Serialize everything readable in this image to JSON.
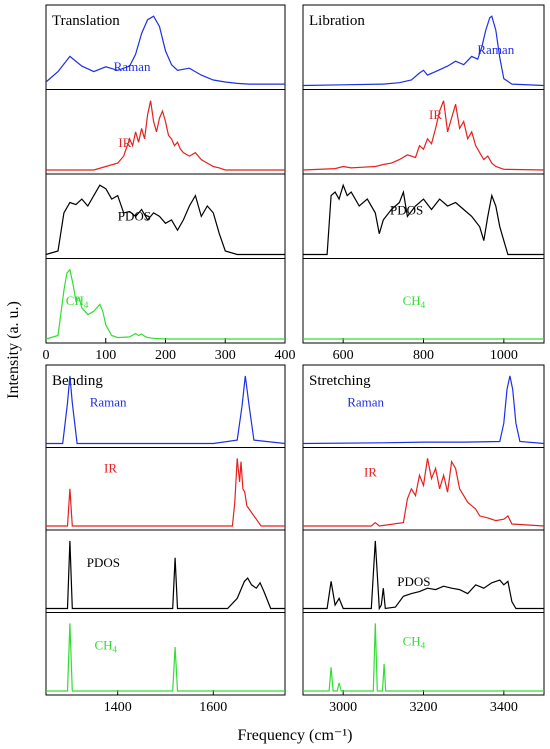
{
  "figure": {
    "ylabel": "Intensity (a. u.)",
    "xlabel": "Frequency (cm⁻¹)"
  },
  "colors": {
    "Raman": "#1f2fe6",
    "IR": "#e62020",
    "PDOS": "#000000",
    "CH4": "#33dd33"
  },
  "chart_data": [
    {
      "type": "line",
      "title": "Translation",
      "xlim": [
        0,
        400
      ],
      "xticks": [
        0,
        100,
        200,
        300,
        400
      ],
      "tick_labels": [
        "0",
        "100",
        "200",
        "300",
        "400"
      ],
      "series": [
        {
          "name": "Raman",
          "x": [
            0,
            20,
            40,
            60,
            80,
            100,
            120,
            140,
            150,
            160,
            170,
            180,
            190,
            200,
            210,
            220,
            240,
            260,
            280,
            300,
            320,
            340,
            360,
            400
          ],
          "y": [
            0.05,
            0.2,
            0.42,
            0.28,
            0.2,
            0.27,
            0.22,
            0.28,
            0.45,
            0.75,
            0.95,
            1.0,
            0.85,
            0.5,
            0.3,
            0.22,
            0.25,
            0.15,
            0.08,
            0.05,
            0.03,
            0.02,
            0.02,
            0.02
          ]
        },
        {
          "name": "IR",
          "x": [
            0,
            80,
            100,
            120,
            130,
            140,
            145,
            150,
            155,
            160,
            165,
            170,
            175,
            180,
            185,
            190,
            195,
            200,
            205,
            210,
            215,
            220,
            225,
            230,
            240,
            250,
            260,
            270,
            280,
            290,
            300,
            400
          ],
          "y": [
            0,
            0,
            0.05,
            0.1,
            0.2,
            0.45,
            0.35,
            0.55,
            0.4,
            0.6,
            0.45,
            0.8,
            1.0,
            0.7,
            0.55,
            0.75,
            0.85,
            0.7,
            0.5,
            0.45,
            0.35,
            0.4,
            0.3,
            0.25,
            0.2,
            0.25,
            0.15,
            0.1,
            0.05,
            0.03,
            0,
            0
          ]
        },
        {
          "name": "PDOS",
          "x": [
            0,
            20,
            30,
            40,
            50,
            60,
            70,
            80,
            90,
            100,
            110,
            120,
            130,
            140,
            150,
            160,
            170,
            180,
            190,
            200,
            210,
            220,
            230,
            240,
            250,
            260,
            270,
            280,
            290,
            300,
            320,
            400
          ],
          "y": [
            0,
            0.05,
            0.6,
            0.75,
            0.72,
            0.8,
            0.7,
            0.85,
            1.0,
            0.95,
            0.8,
            0.85,
            0.6,
            0.62,
            0.55,
            0.65,
            0.5,
            0.6,
            0.55,
            0.45,
            0.5,
            0.35,
            0.5,
            0.7,
            0.85,
            0.55,
            0.7,
            0.6,
            0.3,
            0.05,
            0,
            0
          ]
        },
        {
          "name": "CH4",
          "x": [
            0,
            20,
            30,
            35,
            40,
            45,
            50,
            55,
            60,
            70,
            80,
            90,
            95,
            100,
            110,
            120,
            140,
            150,
            155,
            160,
            165,
            170,
            180,
            200,
            400
          ],
          "y": [
            0,
            0.05,
            0.7,
            0.95,
            1.0,
            0.8,
            0.55,
            0.6,
            0.45,
            0.35,
            0.4,
            0.5,
            0.4,
            0.2,
            0.05,
            0.02,
            0.03,
            0.08,
            0.05,
            0.07,
            0.04,
            0.02,
            0.01,
            0,
            0
          ]
        }
      ],
      "label_positions": {
        "Raman": "right of peak",
        "IR": "center",
        "PDOS": "center",
        "CH4": "left"
      }
    },
    {
      "type": "line",
      "title": "Libration",
      "xlim": [
        500,
        1100
      ],
      "xticks": [
        600,
        800,
        1000
      ],
      "tick_labels": [
        "600",
        "800",
        "1000"
      ],
      "series": [
        {
          "name": "Raman",
          "x": [
            500,
            600,
            700,
            740,
            770,
            790,
            800,
            810,
            830,
            860,
            880,
            900,
            920,
            935,
            945,
            955,
            965,
            970,
            980,
            990,
            1000,
            1020,
            1100
          ],
          "y": [
            0,
            0.01,
            0.02,
            0.04,
            0.08,
            0.18,
            0.22,
            0.15,
            0.2,
            0.28,
            0.35,
            0.3,
            0.42,
            0.38,
            0.55,
            0.8,
            0.98,
            1.0,
            0.8,
            0.4,
            0.1,
            0.02,
            0
          ]
        },
        {
          "name": "IR",
          "x": [
            500,
            580,
            600,
            620,
            650,
            680,
            700,
            720,
            740,
            760,
            780,
            790,
            800,
            810,
            820,
            830,
            840,
            850,
            860,
            870,
            880,
            890,
            900,
            910,
            920,
            930,
            940,
            950,
            960,
            970,
            980,
            1000,
            1100
          ],
          "y": [
            0,
            0.02,
            0.05,
            0.03,
            0.04,
            0.05,
            0.08,
            0.1,
            0.15,
            0.22,
            0.18,
            0.35,
            0.3,
            0.45,
            0.38,
            0.6,
            0.85,
            1.0,
            0.55,
            0.75,
            0.95,
            0.6,
            0.7,
            0.45,
            0.55,
            0.35,
            0.25,
            0.15,
            0.2,
            0.1,
            0.05,
            0.01,
            0
          ]
        },
        {
          "name": "PDOS",
          "x": [
            500,
            560,
            570,
            580,
            590,
            600,
            610,
            620,
            640,
            660,
            680,
            690,
            700,
            720,
            740,
            750,
            760,
            780,
            800,
            820,
            840,
            860,
            880,
            900,
            920,
            940,
            950,
            960,
            970,
            980,
            990,
            1000,
            1010,
            1100
          ],
          "y": [
            0,
            0,
            0.85,
            0.9,
            0.8,
            1.0,
            0.85,
            0.9,
            0.7,
            0.8,
            0.6,
            0.3,
            0.5,
            0.65,
            0.75,
            0.9,
            0.55,
            0.7,
            0.8,
            0.65,
            0.8,
            0.7,
            0.75,
            0.65,
            0.55,
            0.4,
            0.2,
            0.55,
            0.85,
            0.7,
            0.4,
            0.2,
            0,
            0
          ]
        },
        {
          "name": "CH4",
          "x": [
            500,
            1100
          ],
          "y": [
            0,
            0
          ]
        }
      ],
      "label_positions": {
        "Raman": "right",
        "IR": "center",
        "PDOS": "center",
        "CH4": "center"
      }
    },
    {
      "type": "line",
      "title": "Bending",
      "xlim": [
        1250,
        1750
      ],
      "xticks": [
        1400,
        1600
      ],
      "tick_labels": [
        "1400",
        "1600"
      ],
      "series": [
        {
          "name": "Raman",
          "x": [
            1250,
            1285,
            1295,
            1300,
            1305,
            1315,
            1600,
            1650,
            1660,
            1667,
            1675,
            1685,
            1750
          ],
          "y": [
            0,
            0,
            0.6,
            1.0,
            0.6,
            0,
            0,
            0.05,
            0.55,
            1.0,
            0.55,
            0.05,
            0
          ]
        },
        {
          "name": "IR",
          "x": [
            1250,
            1295,
            1300,
            1305,
            1640,
            1645,
            1650,
            1655,
            1658,
            1662,
            1666,
            1670,
            1680,
            1690,
            1700,
            1750
          ],
          "y": [
            0,
            0,
            0.55,
            0,
            0,
            0.35,
            1.0,
            0.65,
            0.95,
            0.55,
            0.5,
            0.3,
            0.2,
            0.1,
            0,
            0
          ]
        },
        {
          "name": "PDOS",
          "x": [
            1250,
            1295,
            1300,
            1305,
            1515,
            1520,
            1525,
            1630,
            1650,
            1665,
            1672,
            1680,
            1690,
            1698,
            1706,
            1720,
            1750
          ],
          "y": [
            0,
            0,
            1.0,
            0,
            0,
            0.75,
            0,
            0,
            0.15,
            0.4,
            0.45,
            0.35,
            0.3,
            0.38,
            0.25,
            0,
            0
          ]
        },
        {
          "name": "CH4",
          "x": [
            1250,
            1295,
            1300,
            1305,
            1515,
            1520,
            1525,
            1750
          ],
          "y": [
            0,
            0,
            1.0,
            0,
            0,
            0.65,
            0,
            0
          ]
        }
      ],
      "label_positions": {
        "Raman": "center-left",
        "IR": "center-left",
        "PDOS": "center-left",
        "CH4": "center-left"
      }
    },
    {
      "type": "line",
      "title": "Stretching",
      "xlim": [
        2900,
        3500
      ],
      "xticks": [
        3000,
        3200,
        3400
      ],
      "tick_labels": [
        "3000",
        "3200",
        "3400"
      ],
      "series": [
        {
          "name": "Raman",
          "x": [
            2900,
            3100,
            3200,
            3300,
            3390,
            3400,
            3408,
            3415,
            3422,
            3430,
            3440,
            3500
          ],
          "y": [
            0,
            0.01,
            0.02,
            0.02,
            0.03,
            0.3,
            0.8,
            1.0,
            0.8,
            0.3,
            0.03,
            0
          ]
        },
        {
          "name": "IR",
          "x": [
            2900,
            3070,
            3080,
            3090,
            3150,
            3160,
            3170,
            3180,
            3190,
            3200,
            3210,
            3220,
            3230,
            3240,
            3250,
            3260,
            3270,
            3280,
            3290,
            3300,
            3310,
            3320,
            3330,
            3340,
            3360,
            3380,
            3400,
            3410,
            3420,
            3500
          ],
          "y": [
            0,
            0,
            0.05,
            0,
            0.05,
            0.4,
            0.55,
            0.45,
            0.75,
            0.6,
            1.0,
            0.7,
            0.85,
            0.55,
            0.75,
            0.5,
            0.95,
            0.85,
            0.55,
            0.45,
            0.35,
            0.3,
            0.25,
            0.15,
            0.12,
            0.08,
            0.1,
            0.15,
            0.03,
            0
          ]
        },
        {
          "name": "PDOS",
          "x": [
            2900,
            2960,
            2970,
            2980,
            2990,
            3000,
            3070,
            3080,
            3090,
            3095,
            3100,
            3105,
            3130,
            3150,
            3170,
            3190,
            3210,
            3230,
            3250,
            3270,
            3290,
            3310,
            3330,
            3350,
            3370,
            3390,
            3400,
            3410,
            3420,
            3430,
            3500
          ],
          "y": [
            0,
            0,
            0.4,
            0.05,
            0.15,
            0,
            0,
            1.0,
            0,
            0.05,
            0.3,
            0,
            0.02,
            0.18,
            0.22,
            0.25,
            0.3,
            0.28,
            0.33,
            0.3,
            0.28,
            0.22,
            0.35,
            0.3,
            0.38,
            0.42,
            0.35,
            0.4,
            0.1,
            0,
            0
          ]
        },
        {
          "name": "CH4",
          "x": [
            2900,
            2965,
            2970,
            2975,
            2985,
            2990,
            2995,
            3075,
            3080,
            3085,
            3098,
            3102,
            3106,
            3500
          ],
          "y": [
            0,
            0,
            0.35,
            0,
            0,
            0.12,
            0,
            0,
            1.0,
            0,
            0,
            0.4,
            0,
            0
          ]
        }
      ],
      "label_positions": {
        "Raman": "center-left",
        "IR": "center",
        "PDOS": "center",
        "CH4": "center"
      }
    }
  ]
}
